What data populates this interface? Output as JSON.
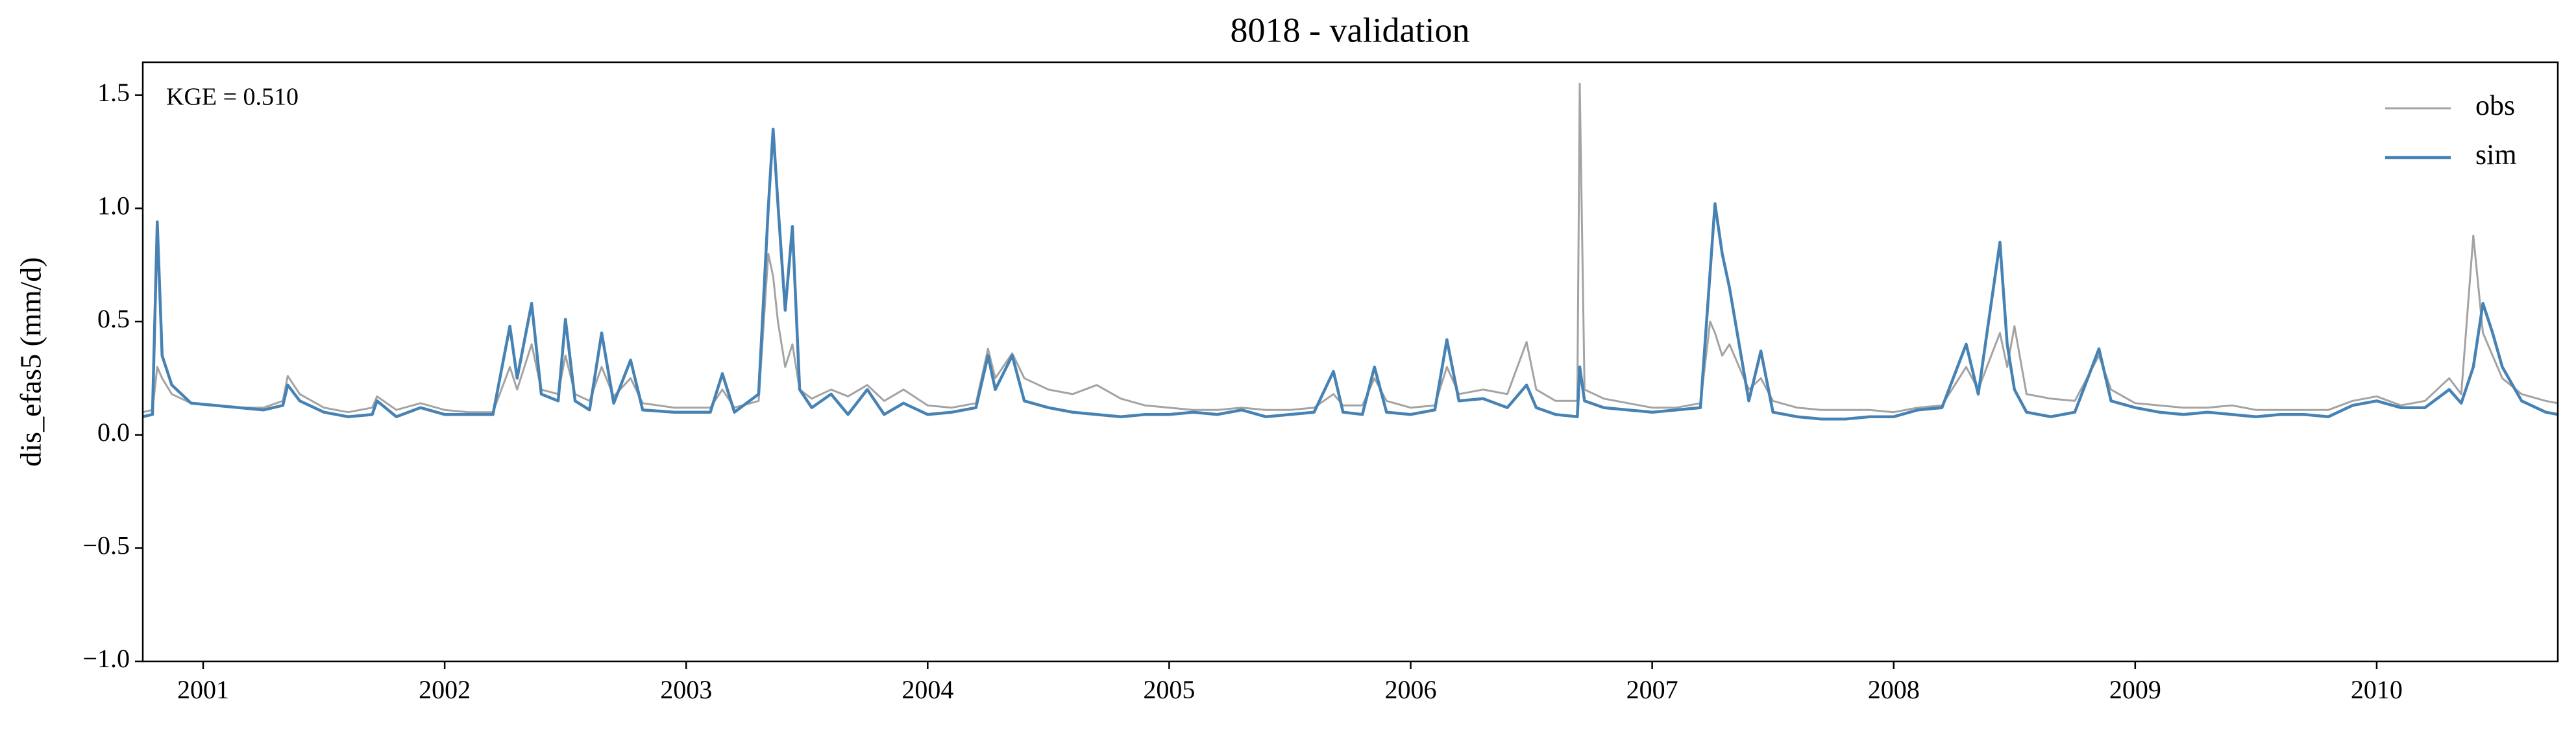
{
  "chart_data": {
    "type": "line",
    "title": "8018 - validation",
    "ylabel": "dis_efas5 (mm/d)",
    "annotation": "KGE = 0.510",
    "legend": "upper right",
    "x": [
      2000.75,
      2000.79,
      2000.81,
      2000.83,
      2000.87,
      2000.95,
      2001.05,
      2001.15,
      2001.25,
      2001.33,
      2001.35,
      2001.4,
      2001.5,
      2001.6,
      2001.7,
      2001.72,
      2001.8,
      2001.9,
      2002.0,
      2002.1,
      2002.2,
      2002.27,
      2002.3,
      2002.36,
      2002.4,
      2002.47,
      2002.5,
      2002.54,
      2002.6,
      2002.65,
      2002.7,
      2002.77,
      2002.82,
      2002.95,
      2003.1,
      2003.15,
      2003.2,
      2003.3,
      2003.34,
      2003.36,
      2003.38,
      2003.41,
      2003.44,
      2003.47,
      2003.52,
      2003.6,
      2003.67,
      2003.75,
      2003.82,
      2003.9,
      2004.0,
      2004.1,
      2004.2,
      2004.25,
      2004.28,
      2004.35,
      2004.4,
      2004.5,
      2004.6,
      2004.7,
      2004.8,
      2004.9,
      2005.0,
      2005.1,
      2005.2,
      2005.3,
      2005.4,
      2005.5,
      2005.6,
      2005.68,
      2005.72,
      2005.8,
      2005.85,
      2005.9,
      2006.0,
      2006.1,
      2006.15,
      2006.2,
      2006.3,
      2006.4,
      2006.48,
      2006.52,
      2006.6,
      2006.69,
      2006.7,
      2006.72,
      2006.8,
      2006.9,
      2007.0,
      2007.1,
      2007.2,
      2007.24,
      2007.26,
      2007.29,
      2007.32,
      2007.36,
      2007.4,
      2007.45,
      2007.5,
      2007.6,
      2007.7,
      2007.8,
      2007.9,
      2008.0,
      2008.1,
      2008.2,
      2008.3,
      2008.35,
      2008.44,
      2008.47,
      2008.5,
      2008.55,
      2008.65,
      2008.75,
      2008.85,
      2008.9,
      2009.0,
      2009.1,
      2009.2,
      2009.3,
      2009.4,
      2009.5,
      2009.6,
      2009.7,
      2009.8,
      2009.9,
      2010.0,
      2010.1,
      2010.2,
      2010.3,
      2010.35,
      2010.4,
      2010.44,
      2010.48,
      2010.52,
      2010.6,
      2010.7,
      2010.75
    ],
    "series": [
      {
        "name": "obs",
        "color": "#a3a3a3",
        "values": [
          0.1,
          0.11,
          0.3,
          0.25,
          0.18,
          0.14,
          0.13,
          0.12,
          0.12,
          0.15,
          0.26,
          0.18,
          0.12,
          0.1,
          0.12,
          0.17,
          0.11,
          0.14,
          0.11,
          0.1,
          0.1,
          0.3,
          0.2,
          0.4,
          0.2,
          0.18,
          0.35,
          0.18,
          0.15,
          0.3,
          0.17,
          0.25,
          0.14,
          0.12,
          0.12,
          0.2,
          0.12,
          0.15,
          0.8,
          0.7,
          0.5,
          0.3,
          0.4,
          0.2,
          0.16,
          0.2,
          0.17,
          0.22,
          0.15,
          0.2,
          0.13,
          0.12,
          0.14,
          0.38,
          0.25,
          0.36,
          0.25,
          0.2,
          0.18,
          0.22,
          0.16,
          0.13,
          0.12,
          0.11,
          0.11,
          0.12,
          0.11,
          0.11,
          0.12,
          0.18,
          0.13,
          0.13,
          0.25,
          0.15,
          0.12,
          0.13,
          0.3,
          0.18,
          0.2,
          0.18,
          0.41,
          0.2,
          0.15,
          0.15,
          1.55,
          0.2,
          0.16,
          0.14,
          0.12,
          0.12,
          0.14,
          0.5,
          0.45,
          0.35,
          0.4,
          0.3,
          0.2,
          0.25,
          0.15,
          0.12,
          0.11,
          0.11,
          0.11,
          0.1,
          0.12,
          0.13,
          0.3,
          0.2,
          0.45,
          0.3,
          0.48,
          0.18,
          0.16,
          0.15,
          0.35,
          0.2,
          0.14,
          0.13,
          0.12,
          0.12,
          0.13,
          0.11,
          0.11,
          0.11,
          0.11,
          0.15,
          0.17,
          0.13,
          0.15,
          0.25,
          0.18,
          0.88,
          0.45,
          0.35,
          0.25,
          0.18,
          0.15,
          0.14
        ]
      },
      {
        "name": "sim",
        "color": "#4682b4",
        "values": [
          0.08,
          0.09,
          0.94,
          0.35,
          0.22,
          0.14,
          0.13,
          0.12,
          0.11,
          0.13,
          0.22,
          0.15,
          0.1,
          0.08,
          0.09,
          0.15,
          0.08,
          0.12,
          0.09,
          0.09,
          0.09,
          0.48,
          0.25,
          0.58,
          0.18,
          0.15,
          0.51,
          0.15,
          0.11,
          0.45,
          0.14,
          0.33,
          0.11,
          0.1,
          0.1,
          0.27,
          0.1,
          0.18,
          1.0,
          1.35,
          1.02,
          0.55,
          0.92,
          0.2,
          0.12,
          0.18,
          0.09,
          0.2,
          0.09,
          0.14,
          0.09,
          0.1,
          0.12,
          0.35,
          0.2,
          0.35,
          0.15,
          0.12,
          0.1,
          0.09,
          0.08,
          0.09,
          0.09,
          0.1,
          0.09,
          0.11,
          0.08,
          0.09,
          0.1,
          0.28,
          0.1,
          0.09,
          0.3,
          0.1,
          0.09,
          0.11,
          0.42,
          0.15,
          0.16,
          0.12,
          0.22,
          0.12,
          0.09,
          0.08,
          0.3,
          0.15,
          0.12,
          0.11,
          0.1,
          0.11,
          0.12,
          0.72,
          1.02,
          0.8,
          0.65,
          0.4,
          0.15,
          0.37,
          0.1,
          0.08,
          0.07,
          0.07,
          0.08,
          0.08,
          0.11,
          0.12,
          0.4,
          0.18,
          0.85,
          0.4,
          0.2,
          0.1,
          0.08,
          0.1,
          0.38,
          0.15,
          0.12,
          0.1,
          0.09,
          0.1,
          0.09,
          0.08,
          0.09,
          0.09,
          0.08,
          0.13,
          0.15,
          0.12,
          0.12,
          0.2,
          0.14,
          0.3,
          0.58,
          0.45,
          0.3,
          0.15,
          0.1,
          0.09
        ]
      }
    ],
    "xlim": [
      2000.75,
      2010.75
    ],
    "xticks": [
      2001,
      2002,
      2003,
      2004,
      2005,
      2006,
      2007,
      2008,
      2009,
      2010
    ],
    "ylim": [
      -1,
      1.645
    ],
    "yticks": [
      {
        "value": -1,
        "label": "−1.0"
      },
      {
        "value": -0.5,
        "label": "−0.5"
      },
      {
        "value": 0,
        "label": "0.0"
      },
      {
        "value": 0.5,
        "label": "0.5"
      },
      {
        "value": 1,
        "label": "1.0"
      },
      {
        "value": 1.5,
        "label": "1.5"
      }
    ]
  }
}
